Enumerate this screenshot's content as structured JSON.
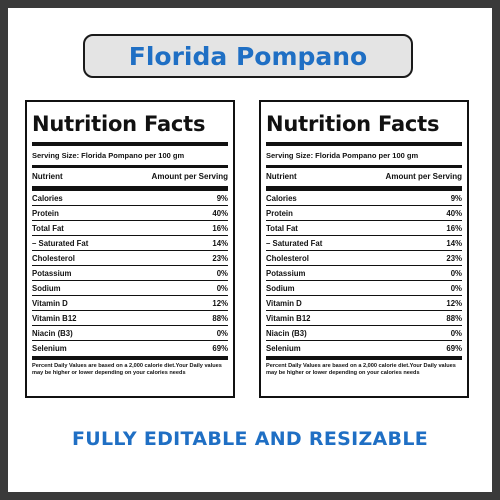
{
  "header": {
    "title": "Florida Pompano"
  },
  "labels": [
    {
      "heading": "Nutrition Facts",
      "serving": "Serving Size: Florida Pompano per 100 gm",
      "col_nutrient": "Nutrient",
      "col_amount": "Amount per Serving",
      "rows": [
        {
          "name": "Calories",
          "value": "9%"
        },
        {
          "name": "Protein",
          "value": "40%"
        },
        {
          "name": "Total Fat",
          "value": "16%"
        },
        {
          "name": "– Saturated Fat",
          "value": "14%"
        },
        {
          "name": "Cholesterol",
          "value": "23%"
        },
        {
          "name": "Potassium",
          "value": "0%"
        },
        {
          "name": "Sodium",
          "value": "0%"
        },
        {
          "name": "Vitamin D",
          "value": "12%"
        },
        {
          "name": "Vitamin B12",
          "value": "88%"
        },
        {
          "name": "Niacin (B3)",
          "value": "0%"
        },
        {
          "name": "Selenium",
          "value": "69%"
        }
      ],
      "footnote": "Percent Daily Values are based on a 2,000 calorie diet.Your Daily values may be higher or lower depending on your calories needs"
    },
    {
      "heading": "Nutrition Facts",
      "serving": "Serving Size: Florida Pompano per 100 gm",
      "col_nutrient": "Nutrient",
      "col_amount": "Amount per Serving",
      "rows": [
        {
          "name": "Calories",
          "value": "9%"
        },
        {
          "name": "Protein",
          "value": "40%"
        },
        {
          "name": "Total Fat",
          "value": "16%"
        },
        {
          "name": "– Saturated Fat",
          "value": "14%"
        },
        {
          "name": "Cholesterol",
          "value": "23%"
        },
        {
          "name": "Potassium",
          "value": "0%"
        },
        {
          "name": "Sodium",
          "value": "0%"
        },
        {
          "name": "Vitamin D",
          "value": "12%"
        },
        {
          "name": "Vitamin B12",
          "value": "88%"
        },
        {
          "name": "Niacin (B3)",
          "value": "0%"
        },
        {
          "name": "Selenium",
          "value": "69%"
        }
      ],
      "footnote": "Percent Daily Values are based on a 2,000 calorie diet.Your Daily values may be higher or lower depending on your calories needs"
    }
  ],
  "footer": {
    "tagline": "FULLY EDITABLE AND RESIZABLE"
  },
  "watermark": {
    "id": "1848002074"
  },
  "colors": {
    "accent": "#1f6fc4",
    "frame": "#3a3a3a",
    "title_bg": "#e4e4e4"
  }
}
